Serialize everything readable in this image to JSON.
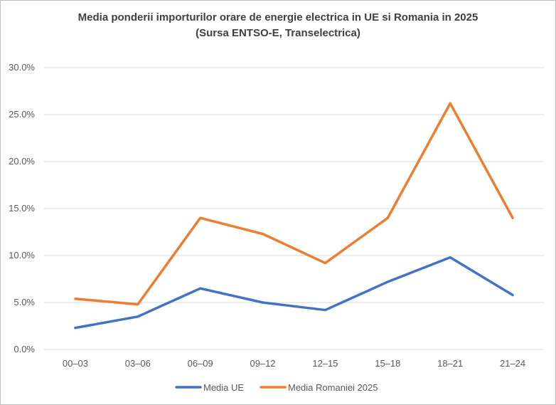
{
  "chart_data": {
    "type": "line",
    "title": "Media ponderii importurilor orare de energie electrica in UE si Romania in 2025",
    "subtitle": "(Sursa ENTSO-E, Transelectrica)",
    "xlabel": "",
    "ylabel": "",
    "categories": [
      "00–03",
      "03–06",
      "06–09",
      "09–12",
      "12–15",
      "15–18",
      "18–21",
      "21–24"
    ],
    "ylim": [
      0,
      0.3
    ],
    "yticks": [
      0.0,
      0.05,
      0.1,
      0.15,
      0.2,
      0.25,
      0.3
    ],
    "ytick_labels": [
      "0.0%",
      "5.0%",
      "10.0%",
      "15.0%",
      "20.0%",
      "25.0%",
      "30.0%"
    ],
    "grid": true,
    "legend_position": "bottom",
    "series": [
      {
        "name": "Media UE",
        "color": "#4472c4",
        "values": [
          0.023,
          0.035,
          0.065,
          0.05,
          0.042,
          0.072,
          0.098,
          0.058
        ]
      },
      {
        "name": "Media Romaniei 2025",
        "color": "#ed7d31",
        "values": [
          0.054,
          0.048,
          0.14,
          0.123,
          0.092,
          0.14,
          0.262,
          0.14
        ]
      }
    ]
  }
}
